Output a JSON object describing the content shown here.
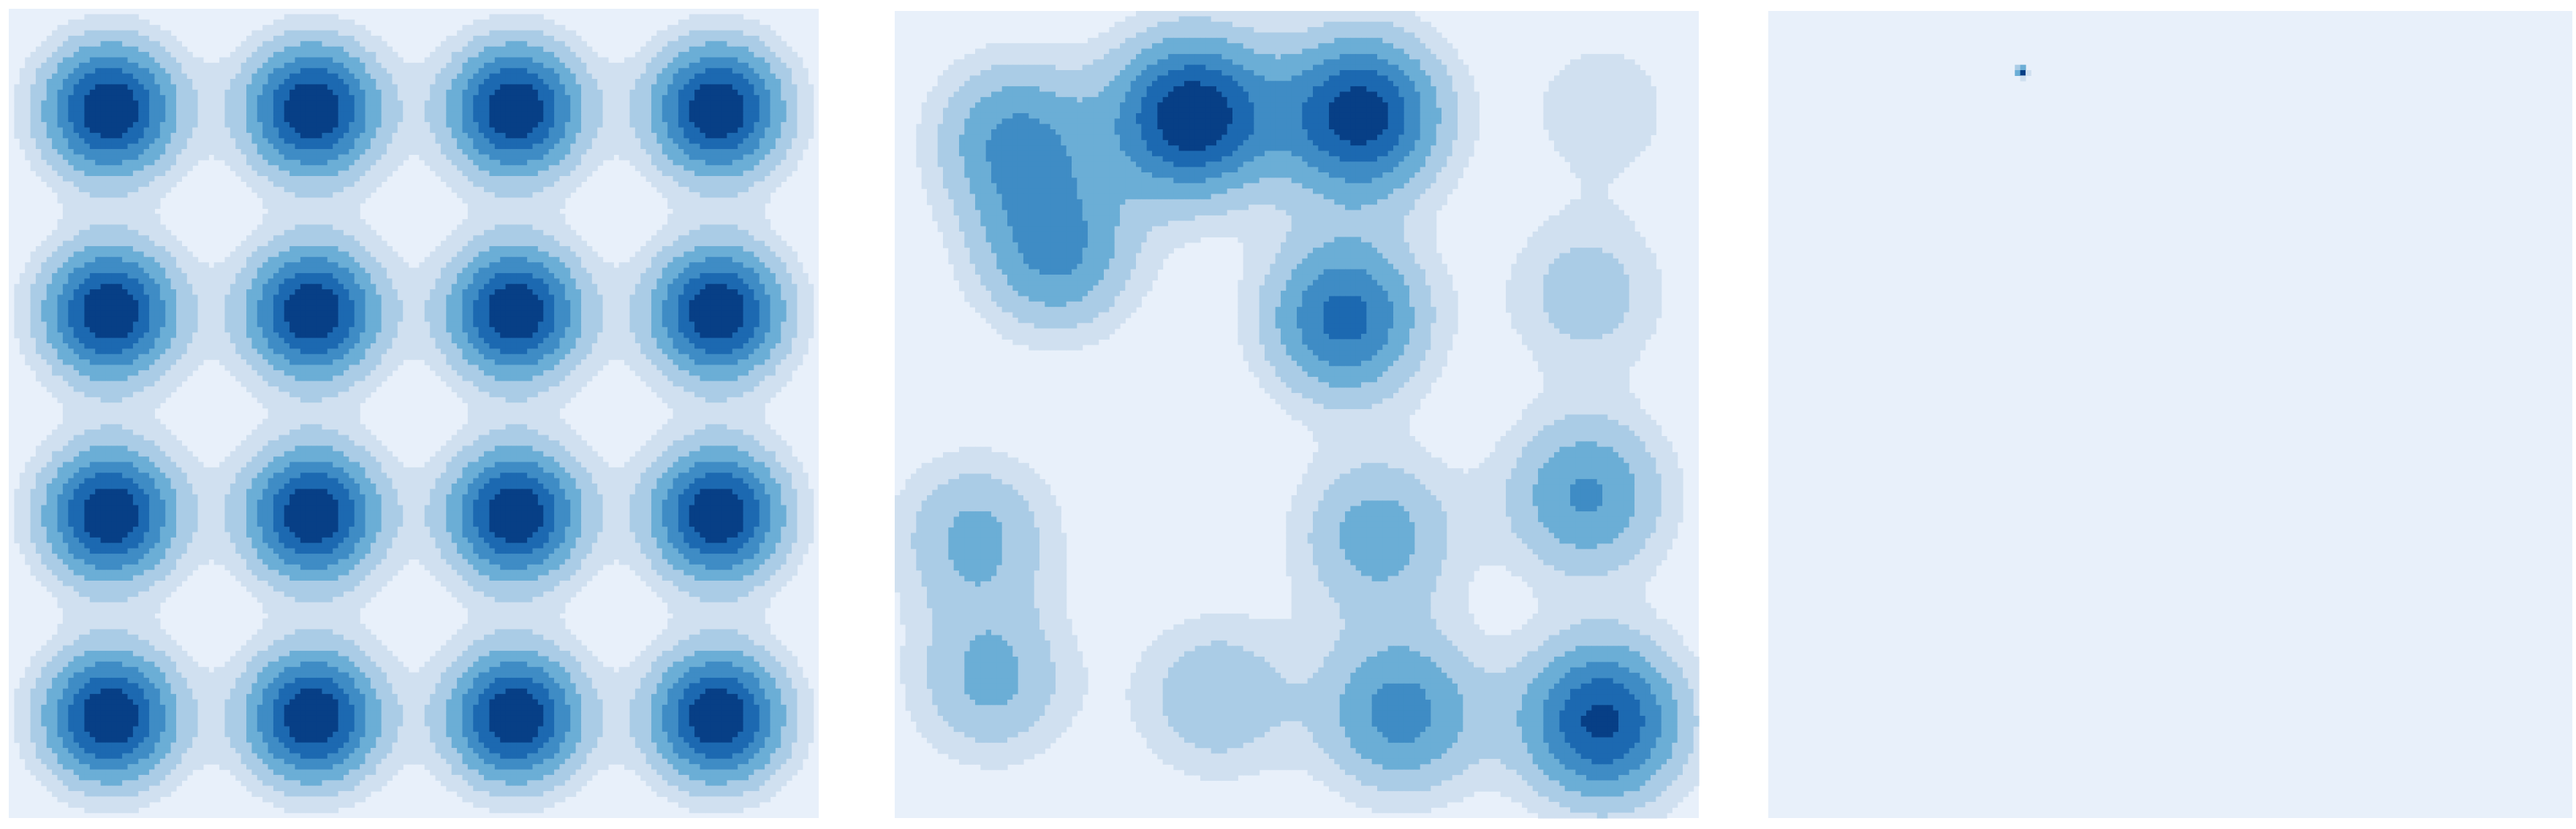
{
  "palette": {
    "levels": [
      "#e8f0fa",
      "#d0e0f0",
      "#aacce6",
      "#6baed6",
      "#3f8cc5",
      "#1c69b1",
      "#073f86"
    ]
  },
  "chart_data": [
    {
      "type": "contour",
      "title": "",
      "xlabel": "",
      "ylabel": "",
      "grid": false,
      "legend": "none",
      "density_model": "gaussian_mixture_grid",
      "xlim": [
        0,
        1
      ],
      "ylim": [
        0,
        1
      ],
      "levels": [
        0.05,
        0.12,
        0.22,
        0.36,
        0.52,
        0.68,
        0.84
      ],
      "components": [
        {
          "x": 0.125,
          "y": 0.875,
          "w": 1
        },
        {
          "x": 0.375,
          "y": 0.875,
          "w": 1
        },
        {
          "x": 0.625,
          "y": 0.875,
          "w": 1
        },
        {
          "x": 0.875,
          "y": 0.875,
          "w": 1
        },
        {
          "x": 0.125,
          "y": 0.625,
          "w": 1
        },
        {
          "x": 0.375,
          "y": 0.625,
          "w": 1
        },
        {
          "x": 0.625,
          "y": 0.625,
          "w": 1
        },
        {
          "x": 0.875,
          "y": 0.625,
          "w": 1
        },
        {
          "x": 0.125,
          "y": 0.375,
          "w": 1
        },
        {
          "x": 0.375,
          "y": 0.375,
          "w": 1
        },
        {
          "x": 0.625,
          "y": 0.375,
          "w": 1
        },
        {
          "x": 0.875,
          "y": 0.375,
          "w": 1
        },
        {
          "x": 0.125,
          "y": 0.125,
          "w": 1
        },
        {
          "x": 0.375,
          "y": 0.125,
          "w": 1
        },
        {
          "x": 0.625,
          "y": 0.125,
          "w": 1
        },
        {
          "x": 0.875,
          "y": 0.125,
          "w": 1
        }
      ],
      "sigma": 0.058
    },
    {
      "type": "contour",
      "title": "",
      "xlabel": "",
      "ylabel": "",
      "grid": false,
      "legend": "none",
      "density_model": "kde_estimate",
      "xlim": [
        0,
        1
      ],
      "ylim": [
        0,
        1
      ],
      "levels": [
        0.05,
        0.12,
        0.22,
        0.36,
        0.52,
        0.68,
        0.84
      ],
      "components": [
        {
          "x": 0.37,
          "y": 0.87,
          "w": 1.0
        },
        {
          "x": 0.58,
          "y": 0.87,
          "w": 0.95
        },
        {
          "x": 0.15,
          "y": 0.84,
          "w": 0.55
        },
        {
          "x": 0.2,
          "y": 0.7,
          "w": 0.55
        },
        {
          "x": 0.56,
          "y": 0.62,
          "w": 0.75
        },
        {
          "x": 0.86,
          "y": 0.4,
          "w": 0.55
        },
        {
          "x": 0.88,
          "y": 0.12,
          "w": 0.9
        },
        {
          "x": 0.63,
          "y": 0.13,
          "w": 0.6
        },
        {
          "x": 0.6,
          "y": 0.35,
          "w": 0.45
        },
        {
          "x": 0.1,
          "y": 0.35,
          "w": 0.4
        },
        {
          "x": 0.12,
          "y": 0.17,
          "w": 0.4
        },
        {
          "x": 0.4,
          "y": 0.15,
          "w": 0.35
        },
        {
          "x": 0.86,
          "y": 0.65,
          "w": 0.3
        },
        {
          "x": 0.88,
          "y": 0.88,
          "w": 0.2
        }
      ],
      "sigma": 0.07
    },
    {
      "type": "contour",
      "title": "",
      "xlabel": "",
      "ylabel": "",
      "grid": false,
      "legend": "none",
      "density_model": "collapsed_point_mass",
      "xlim": [
        0,
        1
      ],
      "ylim": [
        0,
        1
      ],
      "levels": [
        0.05,
        0.12,
        0.22,
        0.36,
        0.52,
        0.68,
        0.84
      ],
      "components": [
        {
          "x": 0.315,
          "y": 0.925,
          "w": 1
        }
      ],
      "sigma": 0.004
    }
  ]
}
